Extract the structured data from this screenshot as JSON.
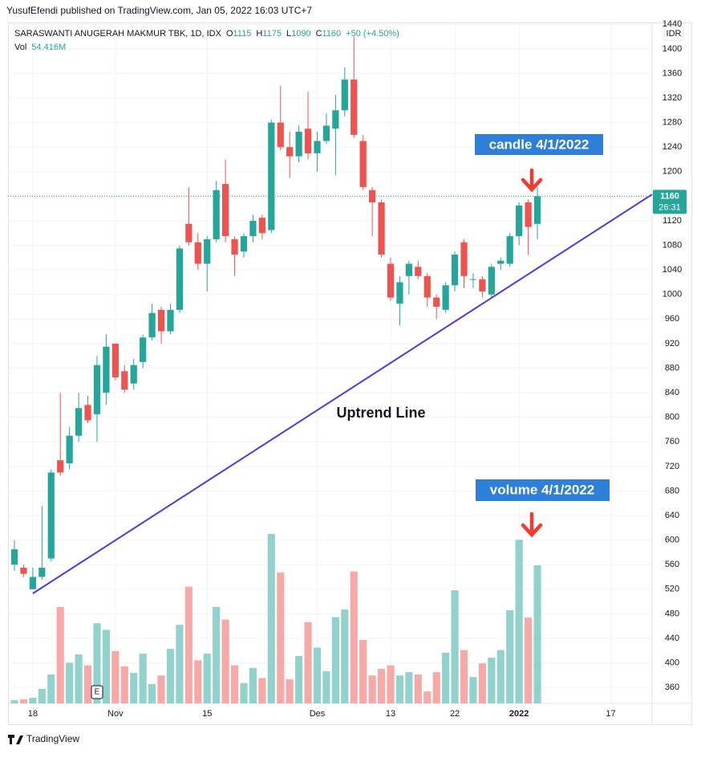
{
  "header": {
    "publisher": "YusufEfendi published on TradingView.com, Jan 05, 2022 16:03 UTC+7",
    "brand": "TradingView"
  },
  "chart_data": {
    "type": "candlestick",
    "title": "SARASWANTI ANUGERAH MAKMUR TBK, 1D, IDX",
    "ohlc_labels": [
      "O",
      "H",
      "L",
      "C"
    ],
    "change": "+50 (+4.50%)",
    "currency": "IDR",
    "countdown": "26:31",
    "event_marker": "E",
    "categories": [
      null,
      null,
      "18",
      null,
      null,
      null,
      null,
      null,
      null,
      null,
      null,
      "Nov",
      null,
      null,
      null,
      null,
      null,
      null,
      null,
      null,
      null,
      "15",
      null,
      null,
      null,
      null,
      null,
      null,
      null,
      null,
      null,
      null,
      null,
      "Des",
      null,
      null,
      null,
      null,
      null,
      null,
      null,
      "13",
      null,
      null,
      null,
      null,
      null,
      null,
      "22",
      null,
      null,
      null,
      null,
      null,
      null,
      "2022",
      null,
      null,
      null,
      null,
      null,
      null,
      null,
      null,
      null,
      "17",
      null,
      null,
      null,
      null
    ],
    "open": [
      560,
      555,
      520,
      540,
      570,
      730,
      725,
      770,
      820,
      805,
      840,
      920,
      875,
      855,
      890,
      930,
      975,
      940,
      975,
      1115,
      1085,
      1050,
      1090,
      1180,
      1090,
      1070,
      1095,
      1125,
      1105,
      1280,
      1240,
      1225,
      1270,
      1230,
      1250,
      1270,
      1300,
      1350,
      1250,
      1170,
      1150,
      1050,
      985,
      1030,
      1045,
      1030,
      995,
      975,
      1015,
      1085,
      1025,
      1025,
      1000,
      1050,
      1050,
      1095,
      1150,
      1115,
      null,
      null,
      null,
      null,
      null,
      null,
      null,
      null,
      null,
      null,
      null,
      null
    ],
    "high": [
      600,
      560,
      555,
      655,
      715,
      840,
      785,
      840,
      835,
      900,
      935,
      920,
      885,
      895,
      935,
      985,
      980,
      985,
      1080,
      1175,
      1100,
      1095,
      1185,
      1220,
      1095,
      1100,
      1130,
      1130,
      1285,
      1340,
      1265,
      1275,
      1330,
      1265,
      1295,
      1325,
      1370,
      1420,
      1260,
      1175,
      1155,
      1060,
      1030,
      1055,
      1055,
      1035,
      1000,
      1020,
      1070,
      1090,
      1035,
      1030,
      1050,
      1060,
      1100,
      1150,
      1155,
      1175,
      null,
      null,
      null,
      null,
      null,
      null,
      null,
      null,
      null,
      null,
      null,
      null
    ],
    "low": [
      550,
      540,
      520,
      535,
      565,
      705,
      715,
      760,
      790,
      760,
      820,
      860,
      840,
      845,
      880,
      925,
      920,
      935,
      970,
      1080,
      1040,
      1005,
      1085,
      1085,
      1030,
      1060,
      1085,
      1090,
      1100,
      1235,
      1190,
      1215,
      1220,
      1200,
      1245,
      1195,
      1290,
      1255,
      1170,
      1095,
      1060,
      990,
      950,
      1000,
      1025,
      980,
      960,
      970,
      1005,
      1010,
      1010,
      995,
      995,
      1040,
      1045,
      1080,
      1065,
      1090,
      null,
      null,
      null,
      null,
      null,
      null,
      null,
      null,
      null,
      null,
      null,
      null
    ],
    "close": [
      585,
      545,
      540,
      555,
      710,
      710,
      770,
      815,
      795,
      885,
      915,
      865,
      845,
      885,
      930,
      970,
      940,
      975,
      1075,
      1085,
      1050,
      1090,
      1170,
      1095,
      1065,
      1095,
      1120,
      1100,
      1280,
      1240,
      1225,
      1265,
      1230,
      1250,
      1275,
      1300,
      1350,
      1260,
      1175,
      1150,
      1065,
      995,
      1020,
      1050,
      1030,
      995,
      980,
      1015,
      1065,
      1030,
      1025,
      1005,
      1045,
      1055,
      1095,
      1145,
      1110,
      1160,
      null,
      null,
      null,
      null,
      null,
      null,
      null,
      null,
      null,
      null,
      null,
      null
    ],
    "up_color": "#26a69a",
    "down_color": "#ef5350",
    "volume": {
      "name": "Vol",
      "last_label": "54.416M",
      "up_color": "#92d2cc",
      "down_color": "#f7a9a7",
      "values": [
        1.3,
        1.6,
        2.2,
        5.7,
        11.4,
        38,
        16,
        19.3,
        15,
        31.6,
        29,
        20.6,
        14.6,
        12,
        19.6,
        7.6,
        11,
        21.5,
        31,
        46,
        17,
        19.6,
        38,
        33,
        15,
        8,
        14,
        10,
        66.8,
        51.6,
        9.5,
        18.7,
        32,
        22,
        12.7,
        34,
        37,
        52,
        25,
        11,
        13.6,
        15,
        11,
        12.3,
        11.4,
        4.7,
        12.3,
        20,
        44.6,
        21,
        10.4,
        15.8,
        18,
        21,
        36.7,
        64.5,
        33.8,
        54.416,
        null,
        null,
        null,
        null,
        null,
        null,
        null,
        null,
        null,
        null,
        null,
        null
      ],
      "ylim": [
        0,
        100
      ]
    },
    "ylim": [
      334,
      1443
    ],
    "yticks": [
      360,
      400,
      440,
      480,
      520,
      560,
      600,
      640,
      680,
      720,
      760,
      800,
      840,
      880,
      920,
      960,
      1000,
      1040,
      1080,
      1120,
      1160,
      1200,
      1240,
      1280,
      1320,
      1360,
      1400,
      1440
    ],
    "grid": true,
    "trendline": {
      "label": "Uptrend Line",
      "color": "#4b3be0",
      "x": [
        2,
        69.5
      ],
      "y": [
        513,
        1163
      ]
    },
    "annotations": [
      {
        "text": "candle 4/1/2022"
      },
      {
        "text": "volume 4/1/2022"
      }
    ]
  }
}
